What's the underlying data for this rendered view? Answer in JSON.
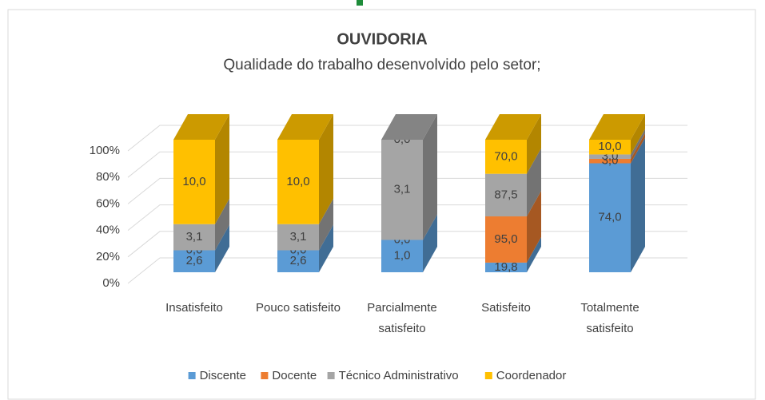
{
  "chart_data": {
    "type": "bar3d_stacked_percent",
    "title": "OUVIDORIA",
    "subtitle": "Qualidade do trabalho desenvolvido pelo setor;",
    "categories": [
      "Insatisfeito",
      "Pouco satisfeito",
      "Parcialmente satisfeito",
      "Satisfeito",
      "Totalmente satisfeito"
    ],
    "series": [
      {
        "name": "Discente",
        "color": "#5b9bd5",
        "values": [
          2.6,
          2.6,
          1.0,
          19.8,
          74.0
        ],
        "value_labels": [
          "2,6",
          "2,6",
          "1,0",
          "19,8",
          "74,0"
        ]
      },
      {
        "name": "Docente",
        "color": "#ed7d31",
        "values": [
          0.0,
          0.0,
          0.0,
          95.0,
          3.0
        ],
        "value_labels": [
          "0,0",
          "0,0",
          "0,0",
          "95,0",
          "3,0"
        ]
      },
      {
        "name": "Técnico Administrativo",
        "color": "#a5a5a5",
        "values": [
          3.1,
          3.1,
          3.1,
          87.5,
          3.0
        ],
        "value_labels": [
          "3,1",
          "3,1",
          "3,1",
          "87,5",
          "3,0"
        ]
      },
      {
        "name": "Coordenador",
        "color": "#ffc000",
        "values": [
          10.0,
          10.0,
          0.0,
          70.0,
          10.0
        ],
        "value_labels": [
          "10,0",
          "10,0",
          "0,0",
          "70,0",
          "10,0"
        ]
      }
    ],
    "ylim": [
      0,
      100
    ],
    "yticks": [
      {
        "value": 0,
        "label": "0%"
      },
      {
        "value": 20,
        "label": "20%"
      },
      {
        "value": 40,
        "label": "40%"
      },
      {
        "value": 60,
        "label": "60%"
      },
      {
        "value": 80,
        "label": "80%"
      },
      {
        "value": 100,
        "label": "100%"
      }
    ],
    "grid": true,
    "legend": "bottom"
  }
}
